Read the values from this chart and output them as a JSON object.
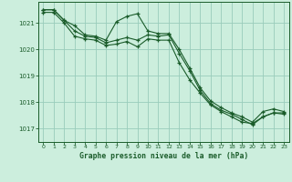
{
  "title": "Graphe pression niveau de la mer (hPa)",
  "background_color": "#cceedd",
  "grid_color": "#99ccbb",
  "line_color": "#1a5c2a",
  "xlim": [
    -0.5,
    23.5
  ],
  "ylim": [
    1016.5,
    1021.8
  ],
  "yticks": [
    1017,
    1018,
    1019,
    1020,
    1021
  ],
  "xticks": [
    0,
    1,
    2,
    3,
    4,
    5,
    6,
    7,
    8,
    9,
    10,
    11,
    12,
    13,
    14,
    15,
    16,
    17,
    18,
    19,
    20,
    21,
    22,
    23
  ],
  "line1_y": [
    1021.5,
    1021.5,
    1021.1,
    1020.9,
    1020.55,
    1020.5,
    1020.35,
    1021.05,
    1021.25,
    1021.35,
    1020.7,
    1020.6,
    1020.6,
    1020.0,
    1019.3,
    1018.55,
    1018.05,
    1017.8,
    1017.6,
    1017.45,
    1017.25,
    1017.65,
    1017.75,
    1017.65
  ],
  "line2_y": [
    1021.5,
    1021.5,
    1021.1,
    1020.7,
    1020.5,
    1020.45,
    1020.25,
    1020.35,
    1020.45,
    1020.35,
    1020.55,
    1020.5,
    1020.55,
    1019.85,
    1019.2,
    1018.45,
    1017.95,
    1017.7,
    1017.55,
    1017.35,
    1017.15,
    1017.45,
    1017.6,
    1017.6
  ],
  "line3_y": [
    1021.4,
    1021.4,
    1021.0,
    1020.5,
    1020.4,
    1020.35,
    1020.15,
    1020.2,
    1020.3,
    1020.1,
    1020.4,
    1020.35,
    1020.35,
    1019.5,
    1018.85,
    1018.35,
    1017.9,
    1017.65,
    1017.45,
    1017.25,
    1017.2,
    1017.45,
    1017.6,
    1017.55
  ]
}
